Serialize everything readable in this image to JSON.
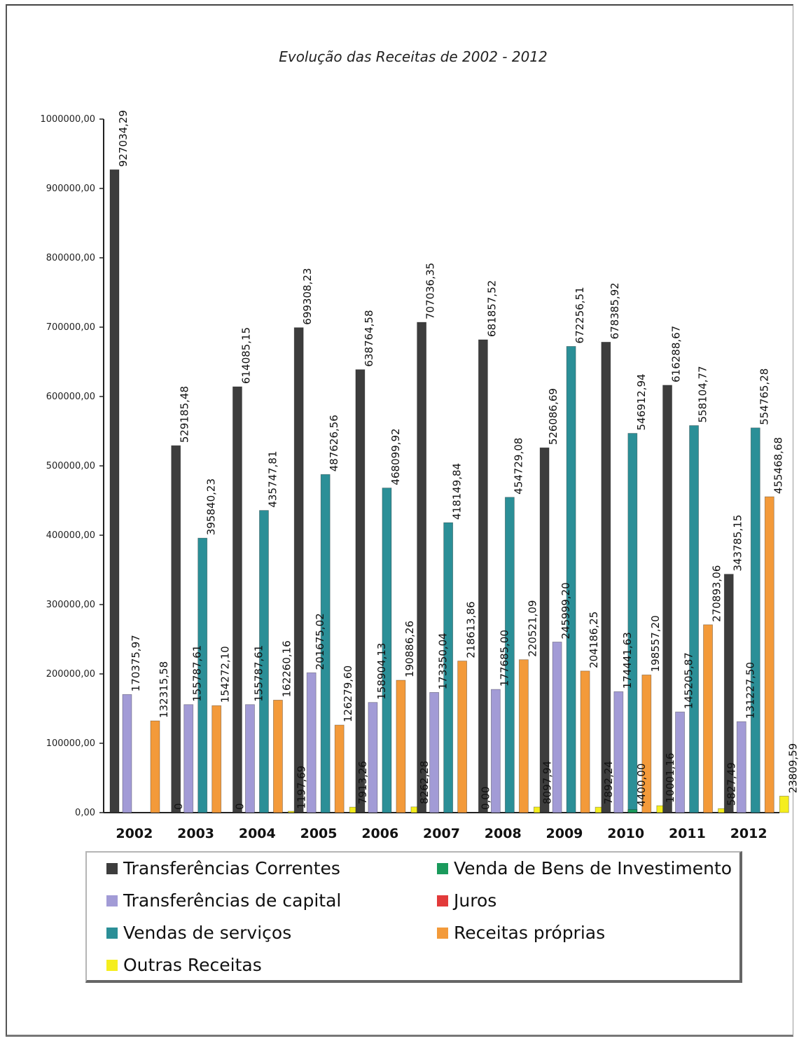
{
  "chart_data": {
    "type": "bar",
    "title": "Evolução das Receitas de 2002 - 2012",
    "categories": [
      "2002",
      "2003",
      "2004",
      "2005",
      "2006",
      "2007",
      "2008",
      "2009",
      "2010",
      "2011",
      "2012"
    ],
    "ylim": [
      0,
      1000000
    ],
    "yticks": [
      0,
      100000,
      200000,
      300000,
      400000,
      500000,
      600000,
      700000,
      800000,
      900000,
      1000000
    ],
    "ytick_labels": [
      "0,00",
      "100000,00",
      "200000,00",
      "300000,00",
      "400000,00",
      "500000,00",
      "600000,00",
      "700000,00",
      "800000,00",
      "900000,00",
      "1000000,00"
    ],
    "legend_position": "bottom",
    "series": [
      {
        "name": "Transferências Correntes",
        "color": "#3d3d3d",
        "values": [
          927034.29,
          529185.48,
          614085.15,
          699308.23,
          638764.58,
          707036.35,
          681857.52,
          526086.69,
          678385.92,
          616288.67,
          343785.15
        ],
        "labels": [
          "927034,29",
          "529185,48",
          "614085,15",
          "699308,23",
          "638764,58",
          "707036,35",
          "681857,52",
          "526086,69",
          "678385,92",
          "616288,67",
          "343785,15"
        ]
      },
      {
        "name": "Transferências de capital",
        "color": "#a29bd6",
        "values": [
          170375.97,
          155787.61,
          155787.61,
          201675.02,
          158904.13,
          173350.04,
          177685.0,
          245999.2,
          174441.63,
          145205.87,
          131227.5
        ],
        "labels": [
          "170375,97",
          "155787,61",
          "155787,61",
          "201675,02",
          "158904,13",
          "173350,04",
          "177685,00",
          "245999,20",
          "174441,63",
          "145205,87",
          "131227,50"
        ]
      },
      {
        "name": "Vendas de serviços",
        "color": "#2b8f97",
        "values": [
          null,
          395840.23,
          435747.81,
          487626.56,
          468099.92,
          418149.84,
          454729.08,
          672256.51,
          546912.94,
          558104.77,
          554765.28
        ],
        "labels": [
          "",
          "395840,23",
          "435747,81",
          "487626,56",
          "468099,92",
          "418149,84",
          "454729,08",
          "672256,51",
          "546912,94",
          "558104,77",
          "554765,28"
        ]
      },
      {
        "name": "Receitas próprias",
        "color": "#f39a3a",
        "values": [
          132315.58,
          154272.1,
          162260.16,
          126279.6,
          190886.26,
          218613.86,
          220521.09,
          204186.25,
          198557.2,
          270893.06,
          455468.68
        ],
        "labels": [
          "132315,58",
          "154272,10",
          "162260,16",
          "126279,60",
          "190886,26",
          "218613,86",
          "220521,09",
          "204186,25",
          "198557,20",
          "270893,06",
          "455468,68"
        ]
      },
      {
        "name": "Outras Receitas",
        "color": "#f5ee1e",
        "values": [
          0,
          0,
          1197.69,
          7913.26,
          8262.28,
          0.0,
          8097.94,
          7892.24,
          10001.16,
          5827.49,
          23809.59
        ],
        "labels": [
          "0",
          "0",
          "1197,69",
          "7913,26",
          "8262,28",
          "0,00",
          "8097,94",
          "7892,24",
          "10001,16",
          "5827,49",
          "23809,59"
        ]
      },
      {
        "name": "Venda de Bens de Investimento",
        "color": "#1a9a5c",
        "values": [
          null,
          null,
          null,
          null,
          null,
          null,
          null,
          null,
          4400.0,
          null,
          null
        ],
        "labels": [
          "",
          "",
          "",
          "",
          "",
          "",
          "",
          "",
          "4400,00",
          "",
          ""
        ]
      },
      {
        "name": "Juros",
        "color": "#e23a3a",
        "values": [
          null,
          null,
          null,
          null,
          null,
          null,
          null,
          null,
          null,
          null,
          null
        ],
        "labels": [
          "",
          "",
          "",
          "",
          "",
          "",
          "",
          "",
          "",
          "",
          ""
        ]
      }
    ]
  },
  "legend": [
    {
      "label": "Transferências Correntes",
      "color": "#3d3d3d"
    },
    {
      "label": "Venda de Bens de Investimento",
      "color": "#1a9a5c"
    },
    {
      "label": "Transferências de capital",
      "color": "#a29bd6"
    },
    {
      "label": "Juros",
      "color": "#e23a3a"
    },
    {
      "label": "Vendas de serviços",
      "color": "#2b8f97"
    },
    {
      "label": "Receitas próprias",
      "color": "#f39a3a"
    },
    {
      "label": "Outras Receitas",
      "color": "#f5ee1e"
    }
  ]
}
